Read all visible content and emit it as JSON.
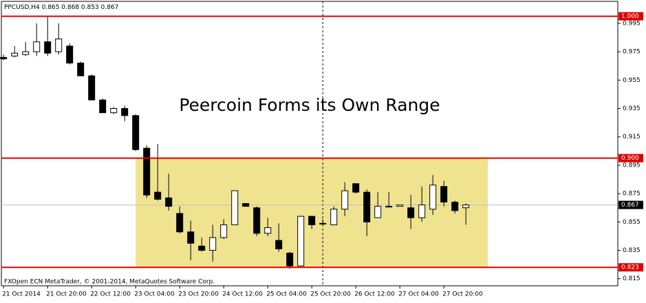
{
  "chart_data": {
    "type": "candlestick",
    "symbol": "PPCUSD,H4",
    "title": "Peercoin Forms its Own Range",
    "footer": "FXOpen ECN MetaTrader, © 2001-2014, MetaQuotes Software Corp.",
    "categories": [
      "21 Oct 2014",
      null,
      null,
      null,
      "21 Oct 20:00",
      null,
      null,
      null,
      "22 Oct 12:00",
      null,
      null,
      null,
      "23 Oct 04:00",
      null,
      null,
      null,
      "23 Oct 20:00",
      null,
      null,
      null,
      "24 Oct 12:00",
      null,
      null,
      null,
      "25 Oct 04:00",
      null,
      null,
      null,
      "25 Oct 20:00",
      null,
      null,
      null,
      "26 Oct 12:00",
      null,
      null,
      null,
      "27 Oct 04:00",
      null,
      null,
      null,
      "27 Oct 20:00",
      null,
      null
    ],
    "open": [
      0.971,
      0.972,
      0.973,
      0.975,
      0.982,
      0.975,
      0.979,
      0.967,
      0.958,
      0.941,
      0.932,
      0.935,
      0.93,
      0.907,
      0.876,
      0.872,
      0.861,
      0.848,
      0.838,
      0.835,
      0.844,
      0.853,
      0.868,
      0.865,
      0.847,
      0.842,
      0.833,
      0.824,
      0.859,
      0.854,
      0.853,
      0.864,
      0.882,
      0.876,
      0.858,
      0.866,
      0.866,
      0.865,
      0.858,
      0.864,
      0.88,
      0.869,
      0.865
    ],
    "high": [
      0.973,
      0.979,
      0.982,
      0.995,
      1.0,
      0.995,
      0.981,
      0.968,
      0.959,
      0.942,
      0.936,
      0.937,
      0.931,
      0.909,
      0.91,
      0.889,
      0.866,
      0.856,
      0.844,
      0.853,
      0.857,
      0.877,
      0.868,
      0.866,
      0.858,
      0.854,
      0.834,
      0.859,
      0.859,
      0.857,
      0.866,
      0.883,
      0.882,
      0.878,
      0.876,
      0.876,
      0.867,
      0.874,
      0.88,
      0.888,
      0.884,
      0.87,
      0.868
    ],
    "low": [
      0.969,
      0.971,
      0.972,
      0.972,
      0.972,
      0.973,
      0.966,
      0.958,
      0.941,
      0.932,
      0.931,
      0.926,
      0.905,
      0.872,
      0.87,
      0.863,
      0.847,
      0.828,
      0.834,
      0.827,
      0.843,
      0.853,
      0.866,
      0.845,
      0.845,
      0.834,
      0.822,
      0.824,
      0.85,
      0.853,
      0.853,
      0.859,
      0.875,
      0.845,
      0.858,
      0.866,
      0.866,
      0.85,
      0.855,
      0.86,
      0.866,
      0.861,
      0.853
    ],
    "close": [
      0.97,
      0.974,
      0.975,
      0.982,
      0.974,
      0.984,
      0.967,
      0.958,
      0.941,
      0.932,
      0.935,
      0.93,
      0.906,
      0.874,
      0.871,
      0.866,
      0.848,
      0.84,
      0.835,
      0.844,
      0.853,
      0.877,
      0.866,
      0.847,
      0.851,
      0.836,
      0.824,
      0.859,
      0.853,
      0.854,
      0.864,
      0.877,
      0.876,
      0.855,
      0.866,
      0.866,
      0.867,
      0.858,
      0.867,
      0.881,
      0.869,
      0.863,
      0.867
    ],
    "xlim": [
      -0.2,
      55.8
    ],
    "ylim": [
      0.81,
      1.0105
    ],
    "yticks": [
      0.815,
      0.835,
      0.855,
      0.875,
      0.895,
      0.915,
      0.935,
      0.955,
      0.975,
      0.995
    ],
    "levels": [
      {
        "value": 1,
        "label": "1.000"
      },
      {
        "value": 0.9,
        "label": "0.900"
      },
      0.823
    ],
    "level_color": "#e00000",
    "current_price": 0.867,
    "range_box": {
      "x": [
        12,
        44
      ],
      "y": [
        0.823,
        0.9
      ],
      "color": "#f0e390"
    },
    "vline_index": 29,
    "up_color": "#ffffff",
    "down_color": "#000000"
  }
}
